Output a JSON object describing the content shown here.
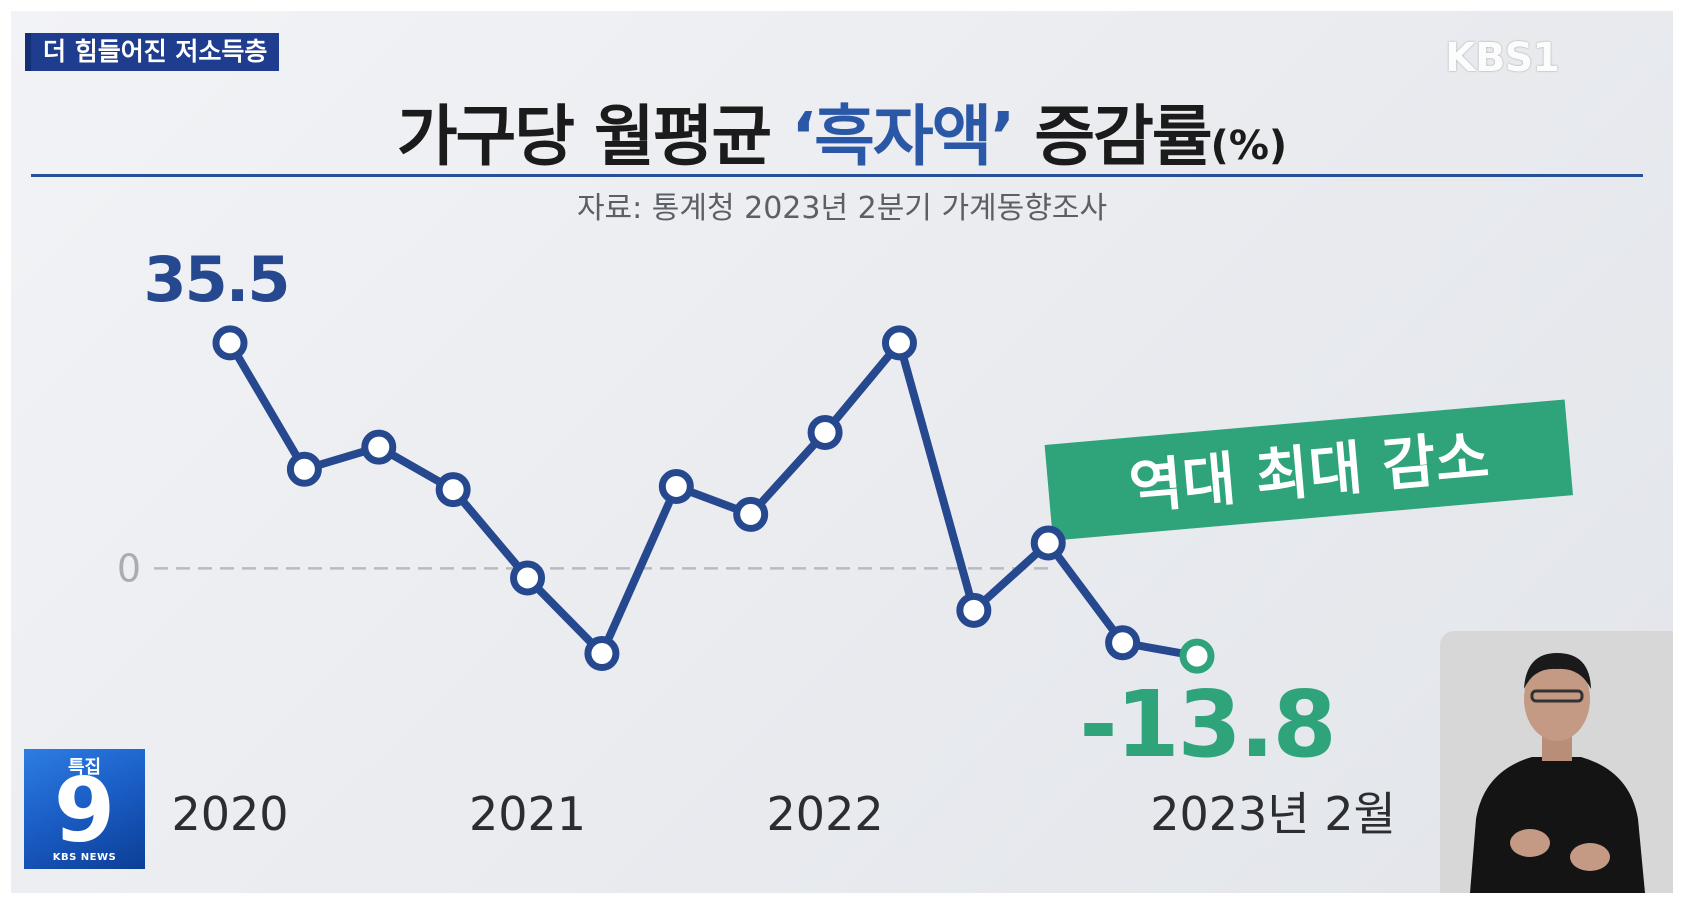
{
  "topic_badge": "더 힘들어진 저소득층",
  "broadcaster_logo": "KBS1",
  "title": {
    "prefix": "가구당 월평균 ",
    "highlight": "‘흑자액’",
    "suffix": " 증감률",
    "unit": "(%)"
  },
  "source": "자료: 통계청 2023년 2분기 가계동향조사",
  "callout": "역대 최대 감소",
  "channel_logo": {
    "label": "특집",
    "number": "9",
    "network": "KBS NEWS"
  },
  "colors": {
    "line": "#25488f",
    "marker_fill": "#ffffff",
    "last_point": "#2fa37a",
    "callout_bg": "#2fa37a",
    "title_highlight": "#2a58a6",
    "zero_line": "#b7bbc2"
  },
  "chart_data": {
    "type": "line",
    "title": "가구당 월평균 ‘흑자액’ 증감률(%)",
    "x": [
      "2020-1Q",
      "2020-2Q",
      "2020-3Q",
      "2020-4Q",
      "2021-1Q",
      "2021-2Q",
      "2021-3Q",
      "2021-4Q",
      "2022-1Q",
      "2022-2Q",
      "2022-3Q",
      "2022-4Q",
      "2023-1Q",
      "2023-2Q"
    ],
    "series": [
      {
        "name": "",
        "values": [
          35.5,
          15.6,
          19.1,
          12.4,
          -1.5,
          -13.4,
          12.9,
          8.5,
          21.4,
          35.5,
          -6.6,
          4.0,
          -11.7,
          -13.8
        ]
      }
    ],
    "x_tick_labels": [
      {
        "index": 0,
        "label": "2020"
      },
      {
        "index": 4,
        "label": "2021"
      },
      {
        "index": 8,
        "label": "2022"
      },
      {
        "index": 13,
        "label": "2023년 2월"
      }
    ],
    "y_tick_labels": [
      {
        "value": 0,
        "label": "0"
      }
    ],
    "data_labels": [
      {
        "index": 0,
        "label": "35.5",
        "color": "line"
      },
      {
        "index": 13,
        "label": "-13.8",
        "color": "last_point"
      }
    ],
    "ylim": [
      -30,
      55
    ],
    "grid": false,
    "zero_line": "dashed",
    "xlabel": "",
    "ylabel": ""
  }
}
